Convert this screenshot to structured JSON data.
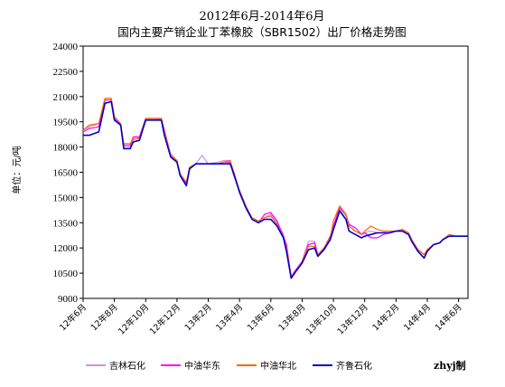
{
  "chart_data": {
    "type": "line",
    "title_line1": "2012年6月-2014年6月",
    "title_line2": "国内主要产销企业丁苯橡胶（SBR1502）出厂价格走势图",
    "ylabel": "单位：元/吨",
    "ylim": [
      9000,
      24000
    ],
    "yticks": [
      9000,
      10500,
      12000,
      13500,
      15000,
      16500,
      18000,
      19500,
      21000,
      22500,
      24000
    ],
    "xlim": [
      0,
      24.6
    ],
    "xticks": [
      {
        "x": 0,
        "label": "12年6月"
      },
      {
        "x": 2,
        "label": "12年8月"
      },
      {
        "x": 4,
        "label": "12年10月"
      },
      {
        "x": 6,
        "label": "12年12月"
      },
      {
        "x": 8,
        "label": "13年2月"
      },
      {
        "x": 10,
        "label": "13年4月"
      },
      {
        "x": 12,
        "label": "13年6月"
      },
      {
        "x": 14,
        "label": "13年8月"
      },
      {
        "x": 16,
        "label": "13年10月"
      },
      {
        "x": 18,
        "label": "13年12月"
      },
      {
        "x": 20,
        "label": "14年2月"
      },
      {
        "x": 22,
        "label": "14年4月"
      },
      {
        "x": 24,
        "label": "14年6月"
      }
    ],
    "grid": false,
    "legend_position": "bottom",
    "credit": "zhyj制",
    "series": [
      {
        "name": "吉林石化",
        "color": "#c896e6",
        "width": 1.2,
        "points": [
          [
            0,
            19000
          ],
          [
            0.4,
            19200
          ],
          [
            1,
            19400
          ],
          [
            1.4,
            20600
          ],
          [
            1.8,
            20700
          ],
          [
            2,
            19700
          ],
          [
            2.4,
            19300
          ],
          [
            2.6,
            18000
          ],
          [
            3,
            18000
          ],
          [
            3.2,
            18400
          ],
          [
            3.6,
            18600
          ],
          [
            4,
            19700
          ],
          [
            4.6,
            19700
          ],
          [
            5,
            19600
          ],
          [
            5.2,
            18900
          ],
          [
            5.6,
            17600
          ],
          [
            6,
            17200
          ],
          [
            6.2,
            16400
          ],
          [
            6.6,
            15900
          ],
          [
            6.8,
            16700
          ],
          [
            7.2,
            17000
          ],
          [
            7.6,
            17500
          ],
          [
            8,
            17000
          ],
          [
            8.6,
            17100
          ],
          [
            9,
            17200
          ],
          [
            9.4,
            17200
          ],
          [
            9.6,
            16500
          ],
          [
            10,
            15400
          ],
          [
            10.4,
            14500
          ],
          [
            10.8,
            13700
          ],
          [
            11.2,
            13600
          ],
          [
            11.6,
            13800
          ],
          [
            12,
            14000
          ],
          [
            12.4,
            13500
          ],
          [
            12.8,
            12800
          ],
          [
            13,
            12000
          ],
          [
            13.3,
            10300
          ],
          [
            13.6,
            10600
          ],
          [
            14,
            11200
          ],
          [
            14.4,
            12400
          ],
          [
            14.8,
            12400
          ],
          [
            15,
            11600
          ],
          [
            15.4,
            12000
          ],
          [
            15.8,
            12600
          ],
          [
            16,
            13300
          ],
          [
            16.4,
            14300
          ],
          [
            16.8,
            13900
          ],
          [
            17,
            13300
          ],
          [
            17.4,
            13000
          ],
          [
            17.8,
            12800
          ],
          [
            18,
            12900
          ],
          [
            18.4,
            13000
          ],
          [
            18.8,
            12900
          ],
          [
            19.2,
            12900
          ],
          [
            19.6,
            12900
          ],
          [
            20,
            13000
          ],
          [
            20.4,
            13000
          ],
          [
            20.8,
            12800
          ],
          [
            21,
            12500
          ],
          [
            21.4,
            11900
          ],
          [
            21.8,
            11600
          ],
          [
            22,
            11900
          ],
          [
            22.4,
            12200
          ],
          [
            22.8,
            12300
          ],
          [
            23,
            12500
          ],
          [
            23.4,
            12700
          ],
          [
            23.8,
            12700
          ],
          [
            24.6,
            12700
          ]
        ]
      },
      {
        "name": "中油华东",
        "color": "#ff00ff",
        "width": 1.2,
        "points": [
          [
            0,
            18900
          ],
          [
            0.4,
            19100
          ],
          [
            1,
            19200
          ],
          [
            1.4,
            20800
          ],
          [
            1.8,
            20800
          ],
          [
            2,
            19800
          ],
          [
            2.4,
            19300
          ],
          [
            2.6,
            18100
          ],
          [
            3,
            18100
          ],
          [
            3.2,
            18600
          ],
          [
            3.6,
            18600
          ],
          [
            4,
            19700
          ],
          [
            4.6,
            19700
          ],
          [
            5,
            19700
          ],
          [
            5.2,
            19000
          ],
          [
            5.6,
            17500
          ],
          [
            6,
            17100
          ],
          [
            6.2,
            16400
          ],
          [
            6.6,
            15800
          ],
          [
            6.8,
            16700
          ],
          [
            7.2,
            17000
          ],
          [
            8,
            17000
          ],
          [
            8.6,
            17000
          ],
          [
            9,
            17100
          ],
          [
            9.4,
            17100
          ],
          [
            9.6,
            16400
          ],
          [
            10,
            15400
          ],
          [
            10.4,
            14500
          ],
          [
            10.8,
            13700
          ],
          [
            11.2,
            13500
          ],
          [
            11.6,
            14000
          ],
          [
            12,
            14100
          ],
          [
            12.4,
            13600
          ],
          [
            12.8,
            12700
          ],
          [
            13,
            12200
          ],
          [
            13.3,
            10300
          ],
          [
            13.6,
            10700
          ],
          [
            14,
            11200
          ],
          [
            14.4,
            12200
          ],
          [
            14.8,
            12300
          ],
          [
            15,
            11600
          ],
          [
            15.4,
            12000
          ],
          [
            15.8,
            12700
          ],
          [
            16,
            13300
          ],
          [
            16.4,
            14400
          ],
          [
            16.8,
            14000
          ],
          [
            17,
            13400
          ],
          [
            17.4,
            13200
          ],
          [
            17.8,
            12800
          ],
          [
            18,
            12900
          ],
          [
            18.4,
            12600
          ],
          [
            18.8,
            12600
          ],
          [
            19.2,
            12800
          ],
          [
            19.6,
            12900
          ],
          [
            20,
            13000
          ],
          [
            20.4,
            13100
          ],
          [
            20.8,
            12900
          ],
          [
            21,
            12500
          ],
          [
            21.4,
            11900
          ],
          [
            21.8,
            11600
          ],
          [
            22,
            11900
          ],
          [
            22.4,
            12200
          ],
          [
            22.8,
            12300
          ],
          [
            23,
            12500
          ],
          [
            23.4,
            12700
          ],
          [
            23.8,
            12700
          ],
          [
            24.6,
            12700
          ]
        ]
      },
      {
        "name": "中油华北",
        "color": "#ff6600",
        "width": 1.2,
        "points": [
          [
            0,
            19000
          ],
          [
            0.4,
            19300
          ],
          [
            1,
            19400
          ],
          [
            1.4,
            20900
          ],
          [
            1.8,
            20900
          ],
          [
            2,
            19800
          ],
          [
            2.4,
            19400
          ],
          [
            2.6,
            18200
          ],
          [
            3,
            18200
          ],
          [
            3.2,
            18500
          ],
          [
            3.6,
            18500
          ],
          [
            4,
            19700
          ],
          [
            4.6,
            19700
          ],
          [
            5,
            19700
          ],
          [
            5.2,
            18900
          ],
          [
            5.6,
            17500
          ],
          [
            6,
            17200
          ],
          [
            6.2,
            16400
          ],
          [
            6.6,
            15900
          ],
          [
            6.8,
            16800
          ],
          [
            7.2,
            17000
          ],
          [
            8,
            17000
          ],
          [
            8.6,
            17000
          ],
          [
            9,
            17100
          ],
          [
            9.4,
            17200
          ],
          [
            9.6,
            16600
          ],
          [
            10,
            15400
          ],
          [
            10.4,
            14500
          ],
          [
            10.8,
            13800
          ],
          [
            11.2,
            13600
          ],
          [
            11.6,
            13800
          ],
          [
            12,
            13900
          ],
          [
            12.4,
            13400
          ],
          [
            12.8,
            12600
          ],
          [
            13,
            12000
          ],
          [
            13.3,
            10300
          ],
          [
            13.6,
            10600
          ],
          [
            14,
            11200
          ],
          [
            14.4,
            12100
          ],
          [
            14.8,
            12100
          ],
          [
            15,
            11600
          ],
          [
            15.4,
            12000
          ],
          [
            15.8,
            12600
          ],
          [
            16,
            13600
          ],
          [
            16.4,
            14500
          ],
          [
            16.8,
            14000
          ],
          [
            17,
            13300
          ],
          [
            17.4,
            13000
          ],
          [
            17.8,
            12800
          ],
          [
            18,
            13000
          ],
          [
            18.4,
            13300
          ],
          [
            18.8,
            13100
          ],
          [
            19.2,
            13000
          ],
          [
            19.6,
            13000
          ],
          [
            20,
            13000
          ],
          [
            20.4,
            13100
          ],
          [
            20.8,
            12900
          ],
          [
            21,
            12500
          ],
          [
            21.4,
            11900
          ],
          [
            21.8,
            11600
          ],
          [
            22,
            11900
          ],
          [
            22.4,
            12200
          ],
          [
            22.8,
            12300
          ],
          [
            23,
            12500
          ],
          [
            23.4,
            12800
          ],
          [
            23.8,
            12700
          ],
          [
            24.6,
            12700
          ]
        ]
      },
      {
        "name": "齐鲁石化",
        "color": "#0000cc",
        "width": 1.6,
        "points": [
          [
            0,
            18700
          ],
          [
            0.4,
            18700
          ],
          [
            1,
            18900
          ],
          [
            1.4,
            20600
          ],
          [
            1.8,
            20700
          ],
          [
            2,
            19600
          ],
          [
            2.4,
            19300
          ],
          [
            2.6,
            17900
          ],
          [
            3,
            17900
          ],
          [
            3.2,
            18300
          ],
          [
            3.6,
            18400
          ],
          [
            4,
            19600
          ],
          [
            4.6,
            19600
          ],
          [
            5,
            19600
          ],
          [
            5.2,
            18700
          ],
          [
            5.6,
            17400
          ],
          [
            6,
            17100
          ],
          [
            6.2,
            16300
          ],
          [
            6.6,
            15700
          ],
          [
            6.8,
            16700
          ],
          [
            7.2,
            17000
          ],
          [
            8,
            17000
          ],
          [
            8.6,
            17000
          ],
          [
            9,
            17000
          ],
          [
            9.4,
            17000
          ],
          [
            9.6,
            16500
          ],
          [
            10,
            15300
          ],
          [
            10.4,
            14400
          ],
          [
            10.8,
            13700
          ],
          [
            11.2,
            13500
          ],
          [
            11.6,
            13700
          ],
          [
            12,
            13700
          ],
          [
            12.4,
            13300
          ],
          [
            12.8,
            12600
          ],
          [
            13,
            11800
          ],
          [
            13.3,
            10200
          ],
          [
            13.6,
            10600
          ],
          [
            14,
            11100
          ],
          [
            14.4,
            11900
          ],
          [
            14.8,
            12000
          ],
          [
            15,
            11500
          ],
          [
            15.4,
            11900
          ],
          [
            15.8,
            12500
          ],
          [
            16,
            13100
          ],
          [
            16.4,
            14200
          ],
          [
            16.8,
            13700
          ],
          [
            17,
            13000
          ],
          [
            17.4,
            12800
          ],
          [
            17.8,
            12600
          ],
          [
            18,
            12700
          ],
          [
            18.4,
            12800
          ],
          [
            18.8,
            12900
          ],
          [
            19.2,
            12900
          ],
          [
            19.6,
            12900
          ],
          [
            20,
            13000
          ],
          [
            20.4,
            13000
          ],
          [
            20.8,
            12800
          ],
          [
            21,
            12400
          ],
          [
            21.4,
            11800
          ],
          [
            21.8,
            11400
          ],
          [
            22,
            11800
          ],
          [
            22.4,
            12200
          ],
          [
            22.8,
            12300
          ],
          [
            23,
            12500
          ],
          [
            23.4,
            12700
          ],
          [
            23.8,
            12700
          ],
          [
            24.6,
            12700
          ]
        ]
      }
    ]
  }
}
